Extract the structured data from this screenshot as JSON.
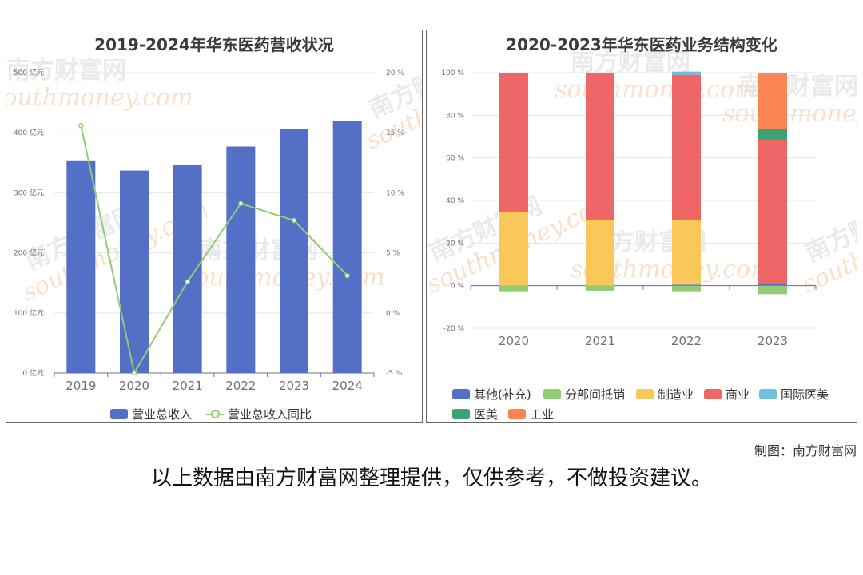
{
  "chart_data": [
    {
      "type": "bar",
      "title": "2019-2024年华东医药营收状况",
      "categories": [
        "2019",
        "2020",
        "2021",
        "2022",
        "2023",
        "2024"
      ],
      "series": [
        {
          "name": "营业总收入",
          "type": "bar",
          "axis": "left",
          "values": [
            354,
            337,
            346,
            377,
            406,
            419
          ]
        },
        {
          "name": "营业总收入同比",
          "type": "line",
          "axis": "right",
          "values": [
            15.6,
            -5.0,
            2.6,
            9.1,
            7.7,
            3.1
          ]
        }
      ],
      "y_left": {
        "min": 0,
        "max": 500,
        "ticks": [
          "0 亿元",
          "100 亿元",
          "200 亿元",
          "300 亿元",
          "400 亿元",
          "500 亿元"
        ]
      },
      "y_right": {
        "min": -5,
        "max": 20,
        "ticks": [
          "-5 %",
          "0 %",
          "5 %",
          "10 %",
          "15 %",
          "20 %"
        ]
      },
      "grid": true,
      "legend_position": "bottom",
      "colors": {
        "bar": "#5470c6",
        "line": "#91cc75"
      }
    },
    {
      "type": "bar",
      "stacked": true,
      "title": "2020-2023年华东医药业务结构变化",
      "categories": [
        "2020",
        "2021",
        "2022",
        "2023"
      ],
      "series": [
        {
          "name": "其他(补充)",
          "color": "#5470c6",
          "values": [
            0,
            0,
            0.5,
            1.0
          ]
        },
        {
          "name": "分部间抵销",
          "color": "#91cc75",
          "values": [
            -3.0,
            -2.5,
            -3.0,
            -4.0
          ]
        },
        {
          "name": "制造业",
          "color": "#fac858",
          "values": [
            34.5,
            31.0,
            30.5,
            0
          ]
        },
        {
          "name": "商业",
          "color": "#ee6666",
          "values": [
            65.5,
            69.0,
            68.0,
            67.5
          ]
        },
        {
          "name": "国际医美",
          "color": "#73c0de",
          "values": [
            0,
            0,
            1.5,
            0
          ]
        },
        {
          "name": "医美",
          "color": "#3ba272",
          "values": [
            0,
            0,
            0,
            5.0
          ]
        },
        {
          "name": "工业",
          "color": "#fc8452",
          "values": [
            0,
            0,
            0,
            26.5
          ]
        }
      ],
      "y": {
        "min": -20,
        "max": 100,
        "ticks": [
          "-20 %",
          "0 %",
          "20 %",
          "40 %",
          "60 %",
          "80 %",
          "100 %"
        ]
      },
      "grid": true,
      "legend_position": "bottom"
    }
  ],
  "credit": "制图：南方财富网",
  "note": "以上数据由南方财富网整理提供，仅供参考，不做投资建议。",
  "watermark": {
    "cn": "南方财富网",
    "en": "southmoney.com"
  }
}
